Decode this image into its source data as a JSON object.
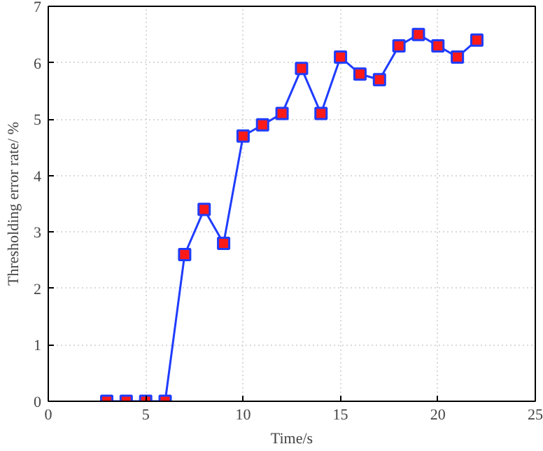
{
  "chart_data": {
    "type": "line",
    "xlabel": "Time/s",
    "ylabel": "Thresholding error rate/ %",
    "x": [
      3,
      4,
      5,
      6,
      7,
      8,
      9,
      10,
      11,
      12,
      13,
      14,
      15,
      16,
      17,
      18,
      19,
      20,
      21,
      22
    ],
    "series": [
      {
        "color": "#1f3cff",
        "values": [
          0,
          0,
          0,
          0,
          2.6,
          3.4,
          2.8,
          4.7,
          4.9,
          5.1,
          5.9,
          5.1,
          6.1,
          5.8,
          5.7,
          6.3,
          6.5,
          6.3,
          6.1,
          6.4
        ]
      }
    ],
    "xlim": [
      0,
      25
    ],
    "xticks": [
      0,
      5,
      10,
      15,
      20,
      25
    ],
    "ylim": [
      0,
      7
    ],
    "yticks": [
      0,
      1,
      2,
      3,
      4,
      5,
      6,
      7
    ],
    "grid": true,
    "marker": "square",
    "line_style": "solid"
  }
}
